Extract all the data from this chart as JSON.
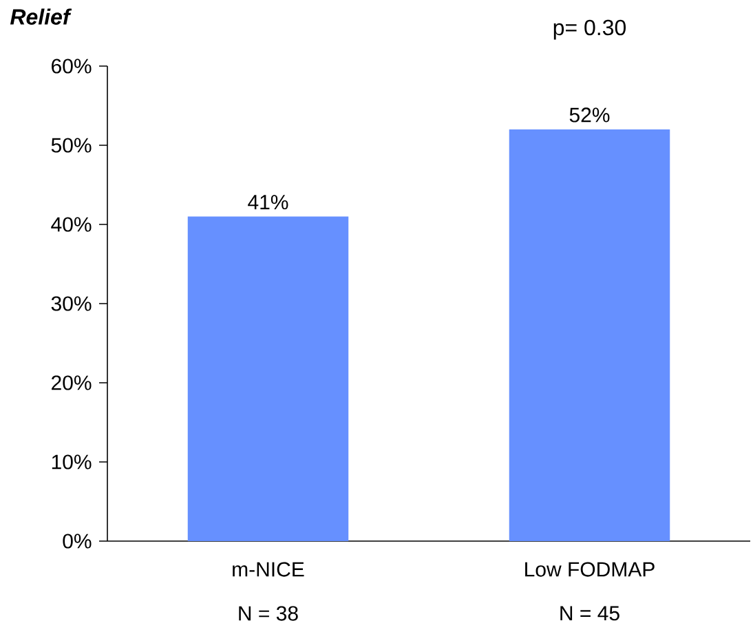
{
  "chart_data": {
    "type": "bar",
    "title": "Relief",
    "categories": [
      "m-NICE",
      "Low FODMAP"
    ],
    "values": [
      41,
      52
    ],
    "value_labels": [
      "41%",
      "52%"
    ],
    "color": "#6690ff",
    "ylim": [
      0,
      60
    ],
    "yticks": [
      {
        "value": 0,
        "label": "0%"
      },
      {
        "value": 10,
        "label": "10%"
      },
      {
        "value": 20,
        "label": "20%"
      },
      {
        "value": 30,
        "label": "30%"
      },
      {
        "value": 40,
        "label": "40%"
      },
      {
        "value": 50,
        "label": "50%"
      },
      {
        "value": 60,
        "label": "60%"
      }
    ],
    "annotations": [
      "p= 0.30",
      "N = 38",
      "N = 45"
    ]
  }
}
